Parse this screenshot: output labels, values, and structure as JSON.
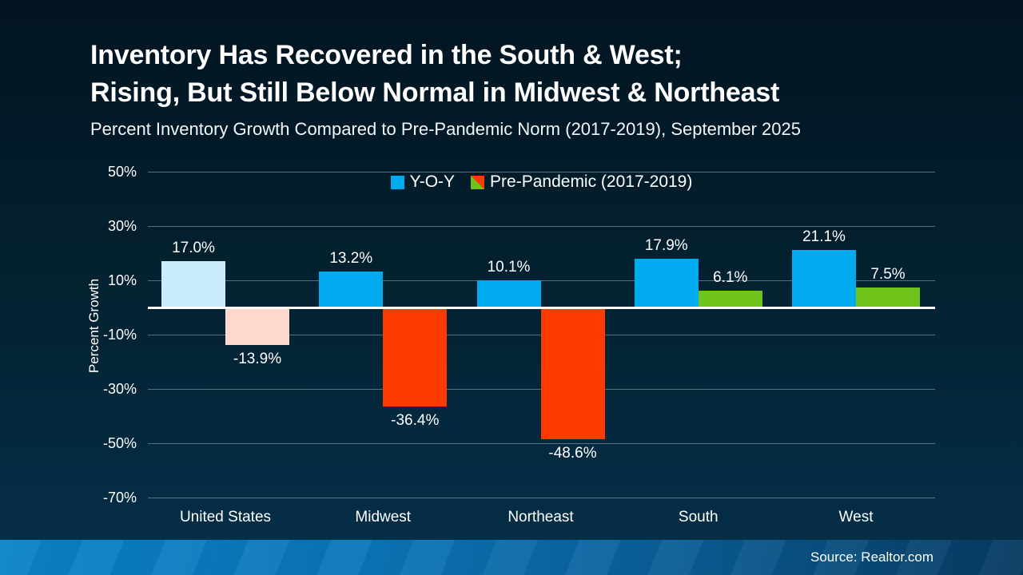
{
  "header": {
    "title_line1": "Inventory Has Recovered in the South & West;",
    "title_line2": "Rising, But Still Below Normal in Midwest & Northeast",
    "subtitle": "Percent Inventory Growth Compared to Pre-Pandemic Norm (2017-2019), September 2025"
  },
  "footer": {
    "source": "Source: Realtor.com"
  },
  "colors": {
    "background_top": "#021420",
    "background_bottom": "#05304a",
    "grid_line": "rgba(170,190,200,0.5)",
    "zero_line": "#ffffff",
    "footer_left": "#0a83c9",
    "footer_right": "#063a60",
    "yoy_blue": "#00aaee",
    "yoy_blue_muted": "#c9ebfb",
    "negative_red": "#fd3a02",
    "negative_red_muted": "#fcd8cd",
    "positive_green": "#6fc41c"
  },
  "chart_data": {
    "type": "bar",
    "title": "Inventory Has Recovered in the South & West; Rising, But Still Below Normal in Midwest & Northeast",
    "subtitle": "Percent Inventory Growth Compared to Pre-Pandemic Norm (2017-2019), September 2025",
    "categories": [
      "United States",
      "Midwest",
      "Northeast",
      "South",
      "West"
    ],
    "series": [
      {
        "name": "Y-O-Y",
        "values": [
          17.0,
          13.2,
          10.1,
          17.9,
          21.1
        ],
        "labels": [
          "17.0%",
          "13.2%",
          "10.1%",
          "17.9%",
          "21.1%"
        ],
        "colors": [
          "#c9ebfb",
          "#00aaee",
          "#00aaee",
          "#00aaee",
          "#00aaee"
        ]
      },
      {
        "name": "Pre-Pandemic (2017-2019)",
        "values": [
          -13.9,
          -36.4,
          -48.6,
          6.1,
          7.5
        ],
        "labels": [
          "-13.9%",
          "-36.4%",
          "-48.6%",
          "6.1%",
          "7.5%"
        ],
        "colors": [
          "#fcd8cd",
          "#fd3a02",
          "#fd3a02",
          "#6fc41c",
          "#6fc41c"
        ]
      }
    ],
    "xlabel": "",
    "ylabel": "Percent Growth",
    "ylim": [
      -70,
      50
    ],
    "yticks": [
      50,
      30,
      10,
      -10,
      -30,
      -50,
      -70
    ],
    "ytick_labels": [
      "50%",
      "30%",
      "10%",
      "-10%",
      "-30%",
      "-50%",
      "-70%"
    ],
    "grid": true,
    "legend": {
      "position": "top-center",
      "items": [
        {
          "label": "Y-O-Y",
          "type": "solid",
          "colors": [
            "#00aaee"
          ]
        },
        {
          "label": "Pre-Pandemic (2017-2019)",
          "type": "split-diagonal",
          "colors": [
            "#6fc41c",
            "#fd3a02"
          ]
        }
      ]
    }
  }
}
